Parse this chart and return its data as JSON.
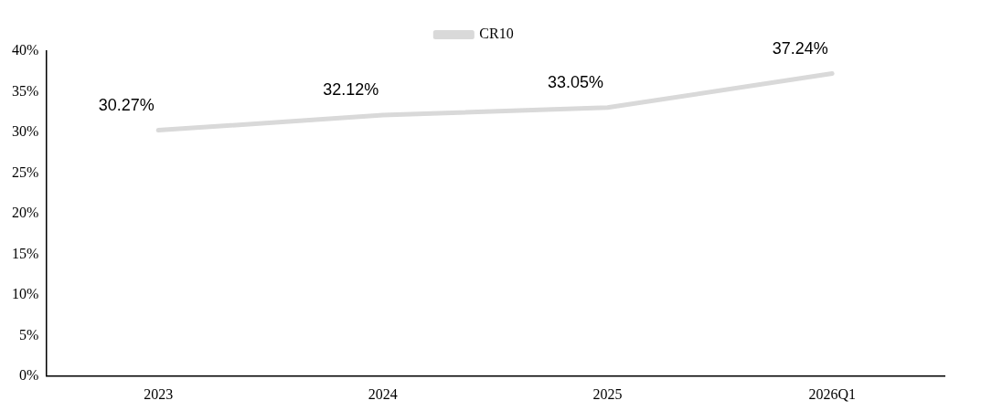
{
  "chart_data": {
    "type": "line",
    "categories": [
      "2023",
      "2024",
      "2025",
      "2026Q1"
    ],
    "series": [
      {
        "name": "CR10",
        "color": "#d9d9d9",
        "values": [
          30.27,
          32.12,
          33.05,
          37.24
        ]
      }
    ],
    "value_labels": [
      "30.27%",
      "32.12%",
      "33.05%",
      "37.24%"
    ],
    "ylim": [
      0,
      40
    ],
    "yticks": [
      {
        "value": 0,
        "label": "0%"
      },
      {
        "value": 5,
        "label": "5%"
      },
      {
        "value": 10,
        "label": "10%"
      },
      {
        "value": 15,
        "label": "15%"
      },
      {
        "value": 20,
        "label": "20%"
      },
      {
        "value": 25,
        "label": "25%"
      },
      {
        "value": 30,
        "label": "30%"
      },
      {
        "value": 35,
        "label": "35%"
      },
      {
        "value": 40,
        "label": "40%"
      }
    ],
    "grid": false,
    "legend": "top",
    "marker": "none",
    "line_style": "solid"
  }
}
